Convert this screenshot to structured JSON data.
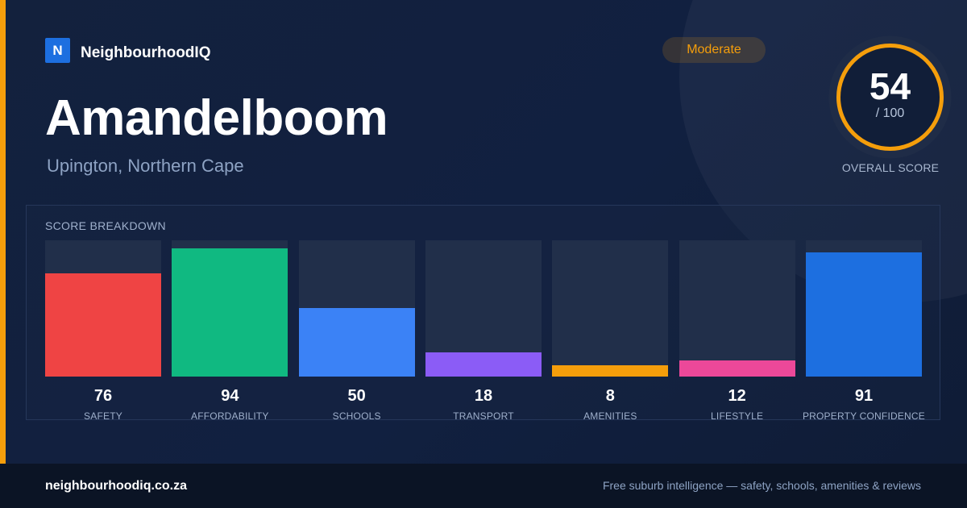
{
  "brand": {
    "logo_letter": "N",
    "name": "NeighbourhoodIQ"
  },
  "suburb": {
    "name": "Amandelboom",
    "location": "Upington, Northern Cape"
  },
  "overall": {
    "rating_label": "Moderate",
    "score": "54",
    "score_max": "/ 100",
    "score_fraction": 0.54,
    "caption": "OVERALL SCORE"
  },
  "colors": {
    "accent": "#f59e0b",
    "brand": "#1d6fe0"
  },
  "breakdown": {
    "title": "SCORE BREAKDOWN"
  },
  "chart_data": {
    "type": "bar",
    "categories": [
      "SAFETY",
      "AFFORDABILITY",
      "SCHOOLS",
      "TRANSPORT",
      "AMENITIES",
      "LIFESTYLE",
      "PROPERTY CONFIDENCE"
    ],
    "values": [
      76,
      94,
      50,
      18,
      8,
      12,
      91
    ],
    "value_labels": [
      "76",
      "94",
      "50",
      "18",
      "8",
      "12",
      "91"
    ],
    "colors": [
      "#ef4444",
      "#10b981",
      "#3b82f6",
      "#8b5cf6",
      "#f59e0b",
      "#ec4899",
      "#1d6fe0"
    ],
    "ylim": [
      0,
      100
    ],
    "title": "",
    "xlabel": "",
    "ylabel": "",
    "grid": false
  },
  "footer": {
    "domain": "neighbourhoodiq.co.za",
    "tagline": "Free suburb intelligence — safety, schools, amenities & reviews"
  }
}
